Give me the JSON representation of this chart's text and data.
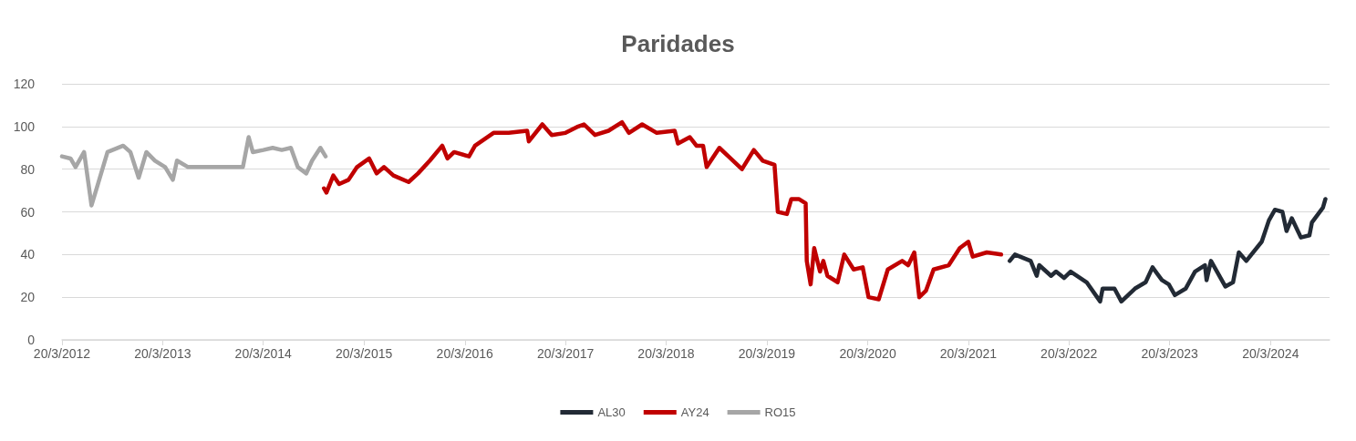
{
  "chart_data": {
    "type": "line",
    "title": "Paridades",
    "xlim": [
      "2012-03-20",
      "2024-10-20"
    ],
    "xticks": [
      {
        "value": "2012-03-20",
        "label": "20/3/2012"
      },
      {
        "value": "2013-03-20",
        "label": "20/3/2013"
      },
      {
        "value": "2014-03-20",
        "label": "20/3/2014"
      },
      {
        "value": "2015-03-20",
        "label": "20/3/2015"
      },
      {
        "value": "2016-03-20",
        "label": "20/3/2016"
      },
      {
        "value": "2017-03-20",
        "label": "20/3/2017"
      },
      {
        "value": "2018-03-20",
        "label": "20/3/2018"
      },
      {
        "value": "2019-03-20",
        "label": "20/3/2019"
      },
      {
        "value": "2020-03-20",
        "label": "20/3/2020"
      },
      {
        "value": "2021-03-20",
        "label": "20/3/2021"
      },
      {
        "value": "2022-03-20",
        "label": "20/3/2022"
      },
      {
        "value": "2023-03-20",
        "label": "20/3/2023"
      },
      {
        "value": "2024-03-20",
        "label": "20/3/2024"
      }
    ],
    "ylim": [
      0,
      120
    ],
    "yticks": [
      0,
      20,
      40,
      60,
      80,
      100,
      120
    ],
    "grid": "y",
    "legend": "bottom",
    "marker": "none",
    "line_style": "solid",
    "series": [
      {
        "name": "AL30",
        "color": "#222a35",
        "x": [
          "2021-08-17",
          "2021-09-05",
          "2021-11-01",
          "2021-11-23",
          "2021-12-02",
          "2022-01-14",
          "2022-02-01",
          "2022-03-02",
          "2022-03-26",
          "2022-05-23",
          "2022-07-11",
          "2022-07-20",
          "2022-09-01",
          "2022-09-26",
          "2022-11-14",
          "2022-12-23",
          "2023-01-17",
          "2023-02-20",
          "2023-03-17",
          "2023-04-08",
          "2023-05-17",
          "2023-06-20",
          "2023-07-26",
          "2023-08-01",
          "2023-08-17",
          "2023-10-08",
          "2023-11-05",
          "2023-11-26",
          "2023-12-23",
          "2024-02-17",
          "2024-03-14",
          "2024-04-05",
          "2024-05-02",
          "2024-05-17",
          "2024-06-05",
          "2024-07-08",
          "2024-08-08",
          "2024-08-17",
          "2024-09-26",
          "2024-10-05"
        ],
        "values": [
          37,
          40,
          37,
          30,
          35,
          30,
          32,
          29,
          32,
          27,
          18,
          24,
          24,
          18,
          24,
          27,
          34,
          28,
          26,
          21,
          24,
          32,
          35,
          28,
          37,
          25,
          27,
          41,
          37,
          46,
          56,
          61,
          60,
          51,
          57,
          48,
          49,
          55,
          62,
          66
        ]
      },
      {
        "name": "AY24",
        "color": "#c00000",
        "x": [
          "2014-10-26",
          "2014-11-04",
          "2014-11-29",
          "2014-12-20",
          "2015-01-23",
          "2015-02-23",
          "2015-04-08",
          "2015-05-05",
          "2015-06-01",
          "2015-07-05",
          "2015-08-29",
          "2015-10-02",
          "2015-11-14",
          "2015-12-29",
          "2016-01-17",
          "2016-02-10",
          "2016-04-04",
          "2016-04-26",
          "2016-07-02",
          "2016-08-26",
          "2016-11-01",
          "2016-11-07",
          "2016-12-26",
          "2017-01-29",
          "2017-03-20",
          "2017-05-05",
          "2017-05-26",
          "2017-07-05",
          "2017-08-23",
          "2017-10-11",
          "2017-11-05",
          "2017-12-23",
          "2018-02-14",
          "2018-04-20",
          "2018-05-02",
          "2018-06-14",
          "2018-07-08",
          "2018-08-01",
          "2018-08-14",
          "2018-09-29",
          "2018-11-01",
          "2018-12-20",
          "2019-02-01",
          "2019-03-05",
          "2019-04-17",
          "2019-04-29",
          "2019-06-01",
          "2019-06-17",
          "2019-07-14",
          "2019-08-08",
          "2019-08-12",
          "2019-08-26",
          "2019-09-08",
          "2019-09-29",
          "2019-10-11",
          "2019-10-26",
          "2019-12-02",
          "2019-12-26",
          "2020-01-29",
          "2020-03-02",
          "2020-03-23",
          "2020-04-29",
          "2020-06-01",
          "2020-07-23",
          "2020-08-14",
          "2020-09-05",
          "2020-09-23",
          "2020-10-17",
          "2020-11-14",
          "2021-01-08",
          "2021-02-17",
          "2021-03-20",
          "2021-04-05",
          "2021-05-26",
          "2021-07-17"
        ],
        "values": [
          71,
          69,
          77,
          73,
          75,
          81,
          85,
          78,
          81,
          77,
          74,
          78,
          84,
          91,
          85,
          88,
          86,
          91,
          97,
          97,
          98,
          93,
          101,
          96,
          97,
          100,
          101,
          96,
          98,
          102,
          97,
          101,
          97,
          98,
          92,
          95,
          91,
          91,
          81,
          90,
          86,
          80,
          89,
          84,
          82,
          60,
          59,
          66,
          66,
          64,
          37,
          26,
          43,
          32,
          37,
          30,
          27,
          40,
          33,
          34,
          20,
          19,
          33,
          37,
          35,
          41,
          20,
          23,
          33,
          35,
          43,
          46,
          39,
          41,
          40
        ]
      },
      {
        "name": "RO15",
        "color": "#a6a6a6",
        "x": [
          "2012-03-20",
          "2012-04-20",
          "2012-05-08",
          "2012-06-08",
          "2012-07-05",
          "2012-07-26",
          "2012-09-01",
          "2012-10-28",
          "2012-11-23",
          "2012-12-23",
          "2013-01-20",
          "2013-02-20",
          "2013-03-29",
          "2013-04-26",
          "2013-05-11",
          "2013-06-20",
          "2013-07-23",
          "2014-01-05",
          "2014-01-26",
          "2014-02-10",
          "2014-03-20",
          "2014-04-23",
          "2014-05-26",
          "2014-06-28",
          "2014-07-23",
          "2014-08-23",
          "2014-09-13",
          "2014-10-13",
          "2014-11-01"
        ],
        "values": [
          86,
          85,
          81,
          88,
          63,
          72,
          88,
          91,
          88,
          76,
          88,
          84,
          81,
          75,
          84,
          81,
          81,
          81,
          95,
          88,
          89,
          90,
          89,
          90,
          81,
          78,
          84,
          90,
          86
        ]
      }
    ]
  }
}
